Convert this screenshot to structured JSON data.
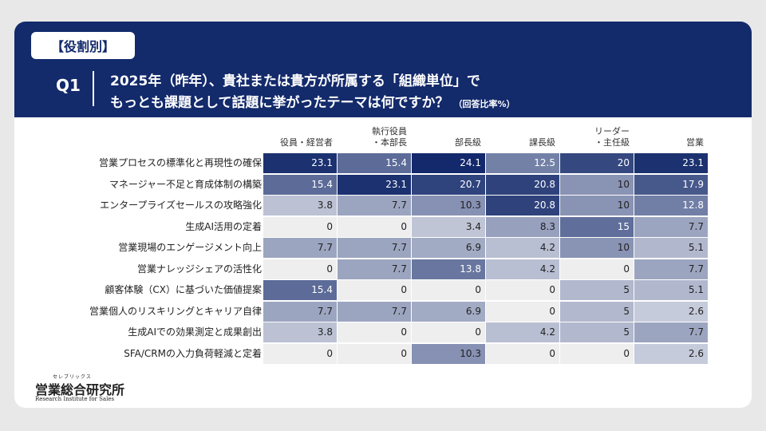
{
  "tag": "【役割別】",
  "question": {
    "number": "Q1",
    "line1": "2025年（昨年）、貴社または貴方が所属する「組織単位」で",
    "line2": "もっとも課題として話題に挙がったテーマは何ですか？",
    "note": "（回答比率%）"
  },
  "chart_data": {
    "type": "table",
    "title": "もっとも課題として話題に挙がったテーマ（役割別・回答比率%）",
    "columns": [
      "役員・経営者",
      "執行役員\n・本部長",
      "部長級",
      "課長級",
      "リーダー\n・主任級",
      "営業"
    ],
    "rows": [
      {
        "label": "営業プロセスの標準化と再現性の確保",
        "values": [
          "23.1",
          "15.4",
          "24.1",
          "12.5",
          "20",
          "23.1"
        ]
      },
      {
        "label": "マネージャー不足と育成体制の構築",
        "values": [
          "15.4",
          "23.1",
          "20.7",
          "20.8",
          "10",
          "17.9"
        ]
      },
      {
        "label": "エンタープライズセールスの攻略強化",
        "values": [
          "3.8",
          "7.7",
          "10.3",
          "20.8",
          "10",
          "12.8"
        ]
      },
      {
        "label": "生成AI活用の定着",
        "values": [
          "0",
          "0",
          "3.4",
          "8.3",
          "15",
          "7.7"
        ]
      },
      {
        "label": "営業現場のエンゲージメント向上",
        "values": [
          "7.7",
          "7.7",
          "6.9",
          "4.2",
          "10",
          "5.1"
        ]
      },
      {
        "label": "営業ナレッジシェアの活性化",
        "values": [
          "0",
          "7.7",
          "13.8",
          "4.2",
          "0",
          "7.7"
        ]
      },
      {
        "label": "顧客体験（CX）に基づいた価値提案",
        "values": [
          "15.4",
          "0",
          "0",
          "0",
          "5",
          "5.1"
        ]
      },
      {
        "label": "営業個人のリスキリングとキャリア自律",
        "values": [
          "7.7",
          "7.7",
          "6.9",
          "0",
          "5",
          "2.6"
        ]
      },
      {
        "label": "生成AIでの効果測定と成果創出",
        "values": [
          "3.8",
          "0",
          "0",
          "4.2",
          "5",
          "7.7"
        ]
      },
      {
        "label": "SFA/CRMの入力負荷軽減と定着",
        "values": [
          "0",
          "0",
          "10.3",
          "0",
          "0",
          "2.6"
        ]
      }
    ]
  },
  "logo": {
    "ruby": "セレブリックス",
    "name": "営業総合研究所",
    "sub": "Research Institute for Sales"
  },
  "colors": {
    "navy": "#132a6b",
    "empty": "#eeeeee",
    "scale_min": "#dcdfe8",
    "scale_max": "#13296b"
  }
}
